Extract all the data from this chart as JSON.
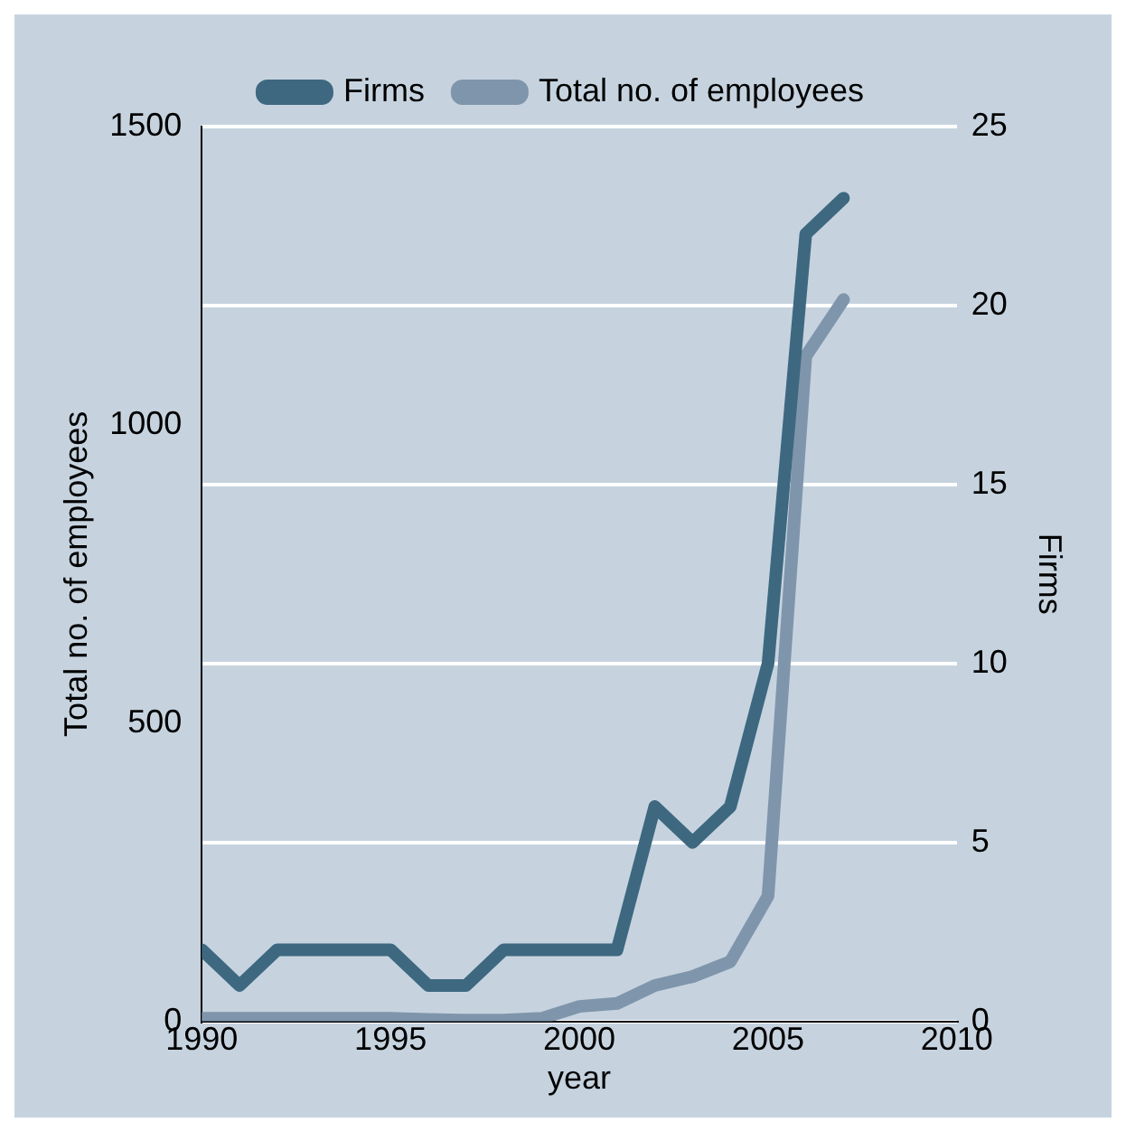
{
  "chart_data": {
    "type": "line",
    "xlabel": "year",
    "ylabel": "Total no. of employees",
    "y2label": "Firms",
    "x": [
      1990,
      1991,
      1992,
      1993,
      1994,
      1995,
      1996,
      1997,
      1998,
      1999,
      2000,
      2001,
      2002,
      2003,
      2004,
      2005,
      2006,
      2007
    ],
    "series": [
      {
        "name": "Firms",
        "color": "#3e6880",
        "axis": "y2",
        "values": [
          2,
          1,
          2,
          2,
          2,
          2,
          1,
          1,
          2,
          2,
          2,
          2,
          6,
          5,
          6,
          10,
          22,
          23
        ]
      },
      {
        "name": "Total no. of employees",
        "color": "#7f95ab",
        "values": [
          5,
          5,
          5,
          5,
          5,
          5,
          3,
          2,
          2,
          5,
          25,
          30,
          60,
          75,
          100,
          210,
          1115,
          1210
        ]
      }
    ],
    "xlim": [
      1990,
      2010
    ],
    "xticks": [
      1990,
      1995,
      2000,
      2005,
      2010
    ],
    "ylim": [
      0,
      1500
    ],
    "yticks": [
      0,
      500,
      1000,
      1500
    ],
    "y2lim": [
      0,
      25
    ],
    "y2ticks": [
      0,
      5,
      10,
      15,
      20,
      25
    ],
    "grid": "y2",
    "legend": "top",
    "marker": "none",
    "line_style": "solid"
  }
}
